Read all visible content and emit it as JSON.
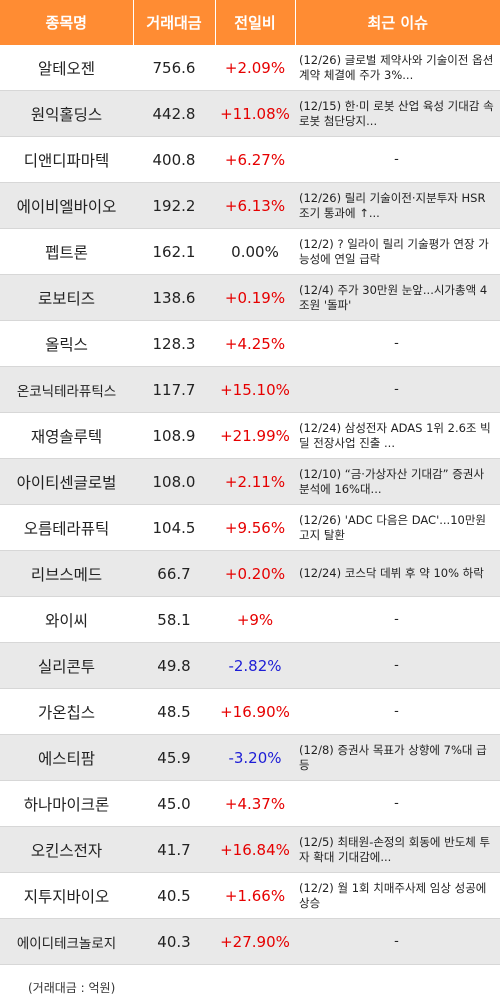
{
  "header": {
    "col1": "종목명",
    "col2": "거래대금",
    "col3": "전일비",
    "col4": "최근 이슈"
  },
  "rows": [
    {
      "name": "알테오젠",
      "volume": "756.6",
      "change": "+2.09%",
      "dir": "up",
      "issue": "(12/26) 글로벌 제약사와 기술이전 옵션 계약 체결에 주가 3%..."
    },
    {
      "name": "원익홀딩스",
      "volume": "442.8",
      "change": "+11.08%",
      "dir": "up",
      "issue": "(12/15) 한·미 로봇 산업 육성 기대감 속 로봇 첨단당지..."
    },
    {
      "name": "디앤디파마텍",
      "volume": "400.8",
      "change": "+6.27%",
      "dir": "up",
      "issue": "-"
    },
    {
      "name": "에이비엘바이오",
      "volume": "192.2",
      "change": "+6.13%",
      "dir": "up",
      "issue": "(12/26) 릴리 기술이전·지분투자 HSR 조기 통과에 ↑..."
    },
    {
      "name": "펩트론",
      "volume": "162.1",
      "change": "0.00%",
      "dir": "flat",
      "issue": "(12/2) ? 일라이 릴리 기술평가 연장 가능성에 연일 급락"
    },
    {
      "name": "로보티즈",
      "volume": "138.6",
      "change": "+0.19%",
      "dir": "up",
      "issue": "(12/4) 주가 30만원 눈앞...시가총액 4조원 '돌파'"
    },
    {
      "name": "올릭스",
      "volume": "128.3",
      "change": "+4.25%",
      "dir": "up",
      "issue": "-"
    },
    {
      "name": "온코닉테라퓨틱스",
      "volume": "117.7",
      "change": "+15.10%",
      "dir": "up",
      "issue": "-",
      "small": true
    },
    {
      "name": "재영솔루텍",
      "volume": "108.9",
      "change": "+21.99%",
      "dir": "up",
      "issue": "(12/24) 삼성전자 ADAS 1위 2.6조 빅딜 전장사업 진출 ..."
    },
    {
      "name": "아이티센글로벌",
      "volume": "108.0",
      "change": "+2.11%",
      "dir": "up",
      "issue": "(12/10) “금·가상자산 기대감” 증권사 분석에 16%대..."
    },
    {
      "name": "오름테라퓨틱",
      "volume": "104.5",
      "change": "+9.56%",
      "dir": "up",
      "issue": "(12/26) 'ADC 다음은 DAC'...10만원 고지 탈환"
    },
    {
      "name": "리브스메드",
      "volume": "66.7",
      "change": "+0.20%",
      "dir": "up",
      "issue": "(12/24) 코스닥 데뷔 후 약 10% 하락"
    },
    {
      "name": "와이씨",
      "volume": "58.1",
      "change": "+9%",
      "dir": "up",
      "issue": "-"
    },
    {
      "name": "실리콘투",
      "volume": "49.8",
      "change": "-2.82%",
      "dir": "down",
      "issue": "-"
    },
    {
      "name": "가온칩스",
      "volume": "48.5",
      "change": "+16.90%",
      "dir": "up",
      "issue": "-"
    },
    {
      "name": "에스티팜",
      "volume": "45.9",
      "change": "-3.20%",
      "dir": "down",
      "issue": "(12/8) 증권사 목표가 상향에 7%대 급등"
    },
    {
      "name": "하나마이크론",
      "volume": "45.0",
      "change": "+4.37%",
      "dir": "up",
      "issue": "-"
    },
    {
      "name": "오킨스전자",
      "volume": "41.7",
      "change": "+16.84%",
      "dir": "up",
      "issue": "(12/5) 최태원-손정의 회동에 반도체 투자 확대 기대감에..."
    },
    {
      "name": "지투지바이오",
      "volume": "40.5",
      "change": "+1.66%",
      "dir": "up",
      "issue": "(12/2) 월 1회 치매주사제 임상 성공에 상승"
    },
    {
      "name": "에이디테크놀로지",
      "volume": "40.3",
      "change": "+27.90%",
      "dir": "up",
      "issue": "-",
      "small": true
    }
  ],
  "footnote": "(거래대금 : 억원)",
  "colors": {
    "header_bg": "#ff8c33",
    "up": "#e60000",
    "down": "#1d1dd6",
    "row_alt": "#e9e9e9"
  }
}
